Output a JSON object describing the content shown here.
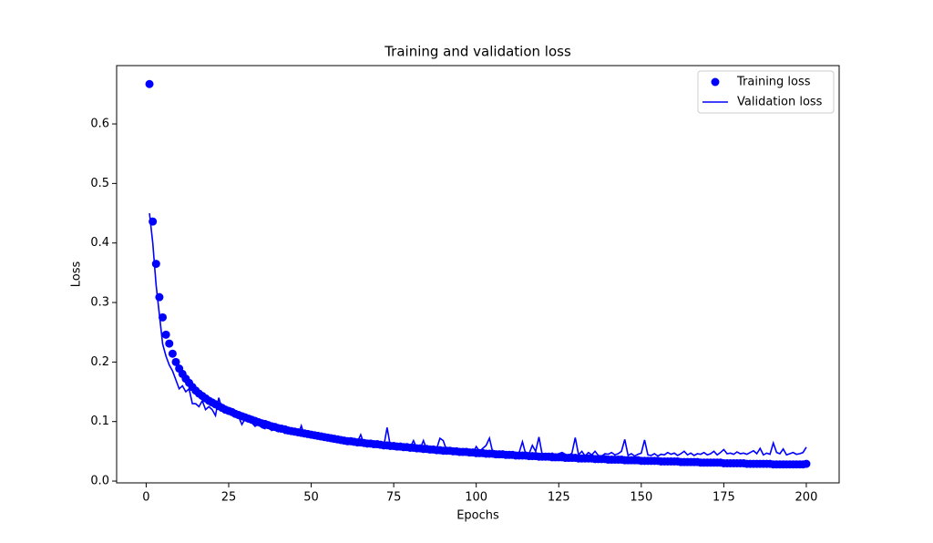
{
  "chart_data": {
    "type": "line",
    "title": "Training and validation loss",
    "xlabel": "Epochs",
    "ylabel": "Loss",
    "x": [
      1,
      2,
      3,
      4,
      5,
      6,
      7,
      8,
      9,
      10,
      11,
      12,
      13,
      14,
      15,
      16,
      17,
      18,
      19,
      20,
      21,
      22,
      23,
      24,
      25,
      26,
      27,
      28,
      29,
      30,
      31,
      32,
      33,
      34,
      35,
      36,
      37,
      38,
      39,
      40,
      41,
      42,
      43,
      44,
      45,
      46,
      47,
      48,
      49,
      50,
      51,
      52,
      53,
      54,
      55,
      56,
      57,
      58,
      59,
      60,
      61,
      62,
      63,
      64,
      65,
      66,
      67,
      68,
      69,
      70,
      71,
      72,
      73,
      74,
      75,
      76,
      77,
      78,
      79,
      80,
      81,
      82,
      83,
      84,
      85,
      86,
      87,
      88,
      89,
      90,
      91,
      92,
      93,
      94,
      95,
      96,
      97,
      98,
      99,
      100,
      101,
      102,
      103,
      104,
      105,
      106,
      107,
      108,
      109,
      110,
      111,
      112,
      113,
      114,
      115,
      116,
      117,
      118,
      119,
      120,
      121,
      122,
      123,
      124,
      125,
      126,
      127,
      128,
      129,
      130,
      131,
      132,
      133,
      134,
      135,
      136,
      137,
      138,
      139,
      140,
      141,
      142,
      143,
      144,
      145,
      146,
      147,
      148,
      149,
      150,
      151,
      152,
      153,
      154,
      155,
      156,
      157,
      158,
      159,
      160,
      161,
      162,
      163,
      164,
      165,
      166,
      167,
      168,
      169,
      170,
      171,
      172,
      173,
      174,
      175,
      176,
      177,
      178,
      179,
      180,
      181,
      182,
      183,
      184,
      185,
      186,
      187,
      188,
      189,
      190,
      191,
      192,
      193,
      194,
      195,
      196,
      197,
      198,
      199,
      200
    ],
    "series": [
      {
        "name": "Training loss",
        "color": "#0000ff",
        "mode": "markers",
        "values": [
          0.667,
          0.436,
          0.365,
          0.309,
          0.275,
          0.246,
          0.231,
          0.214,
          0.2,
          0.189,
          0.18,
          0.172,
          0.165,
          0.158,
          0.152,
          0.147,
          0.143,
          0.139,
          0.135,
          0.132,
          0.129,
          0.126,
          0.123,
          0.12,
          0.118,
          0.116,
          0.113,
          0.111,
          0.109,
          0.107,
          0.105,
          0.103,
          0.101,
          0.099,
          0.097,
          0.096,
          0.094,
          0.092,
          0.091,
          0.089,
          0.088,
          0.087,
          0.085,
          0.084,
          0.083,
          0.082,
          0.081,
          0.08,
          0.079,
          0.078,
          0.077,
          0.076,
          0.075,
          0.074,
          0.073,
          0.072,
          0.071,
          0.07,
          0.069,
          0.068,
          0.067,
          0.067,
          0.066,
          0.065,
          0.065,
          0.064,
          0.063,
          0.063,
          0.062,
          0.062,
          0.061,
          0.06,
          0.06,
          0.059,
          0.059,
          0.058,
          0.058,
          0.057,
          0.057,
          0.056,
          0.056,
          0.055,
          0.055,
          0.054,
          0.054,
          0.053,
          0.053,
          0.052,
          0.052,
          0.051,
          0.051,
          0.051,
          0.05,
          0.05,
          0.049,
          0.049,
          0.049,
          0.048,
          0.048,
          0.047,
          0.047,
          0.047,
          0.046,
          0.046,
          0.046,
          0.045,
          0.045,
          0.045,
          0.044,
          0.044,
          0.044,
          0.043,
          0.043,
          0.043,
          0.043,
          0.042,
          0.042,
          0.042,
          0.041,
          0.041,
          0.041,
          0.041,
          0.04,
          0.04,
          0.04,
          0.04,
          0.039,
          0.039,
          0.039,
          0.039,
          0.038,
          0.038,
          0.038,
          0.038,
          0.038,
          0.037,
          0.037,
          0.037,
          0.037,
          0.036,
          0.036,
          0.036,
          0.036,
          0.036,
          0.035,
          0.035,
          0.035,
          0.035,
          0.035,
          0.034,
          0.034,
          0.034,
          0.034,
          0.034,
          0.034,
          0.033,
          0.033,
          0.033,
          0.033,
          0.033,
          0.033,
          0.032,
          0.032,
          0.032,
          0.032,
          0.032,
          0.032,
          0.031,
          0.031,
          0.031,
          0.031,
          0.031,
          0.031,
          0.031,
          0.03,
          0.03,
          0.03,
          0.03,
          0.03,
          0.03,
          0.03,
          0.029,
          0.029,
          0.029,
          0.029,
          0.029,
          0.029,
          0.029,
          0.029,
          0.028,
          0.028,
          0.028,
          0.028,
          0.028,
          0.028,
          0.028,
          0.028,
          0.028,
          0.028,
          0.029
        ]
      },
      {
        "name": "Validation loss",
        "color": "#0000ff",
        "mode": "lines",
        "values": [
          0.45,
          0.4,
          0.33,
          0.28,
          0.23,
          0.21,
          0.195,
          0.185,
          0.17,
          0.155,
          0.16,
          0.15,
          0.155,
          0.13,
          0.13,
          0.125,
          0.135,
          0.12,
          0.125,
          0.12,
          0.11,
          0.14,
          0.12,
          0.125,
          0.115,
          0.118,
          0.11,
          0.108,
          0.095,
          0.105,
          0.1,
          0.098,
          0.092,
          0.096,
          0.09,
          0.088,
          0.095,
          0.085,
          0.087,
          0.083,
          0.085,
          0.08,
          0.082,
          0.079,
          0.081,
          0.077,
          0.093,
          0.076,
          0.078,
          0.075,
          0.074,
          0.08,
          0.072,
          0.071,
          0.073,
          0.069,
          0.07,
          0.068,
          0.067,
          0.069,
          0.066,
          0.065,
          0.064,
          0.066,
          0.078,
          0.062,
          0.063,
          0.061,
          0.064,
          0.06,
          0.06,
          0.059,
          0.09,
          0.058,
          0.057,
          0.06,
          0.056,
          0.058,
          0.055,
          0.057,
          0.068,
          0.055,
          0.054,
          0.068,
          0.053,
          0.055,
          0.052,
          0.054,
          0.072,
          0.068,
          0.052,
          0.05,
          0.051,
          0.049,
          0.052,
          0.05,
          0.048,
          0.05,
          0.047,
          0.058,
          0.05,
          0.055,
          0.06,
          0.072,
          0.048,
          0.047,
          0.046,
          0.05,
          0.045,
          0.047,
          0.046,
          0.044,
          0.048,
          0.066,
          0.045,
          0.046,
          0.06,
          0.05,
          0.074,
          0.044,
          0.046,
          0.043,
          0.047,
          0.044,
          0.046,
          0.048,
          0.045,
          0.043,
          0.047,
          0.073,
          0.044,
          0.05,
          0.042,
          0.048,
          0.044,
          0.05,
          0.043,
          0.042,
          0.046,
          0.045,
          0.048,
          0.044,
          0.046,
          0.05,
          0.07,
          0.043,
          0.046,
          0.042,
          0.045,
          0.047,
          0.069,
          0.044,
          0.043,
          0.046,
          0.042,
          0.045,
          0.044,
          0.048,
          0.045,
          0.047,
          0.043,
          0.046,
          0.05,
          0.044,
          0.047,
          0.043,
          0.046,
          0.045,
          0.048,
          0.044,
          0.046,
          0.05,
          0.044,
          0.048,
          0.053,
          0.046,
          0.047,
          0.045,
          0.049,
          0.046,
          0.047,
          0.045,
          0.048,
          0.051,
          0.046,
          0.055,
          0.044,
          0.047,
          0.045,
          0.064,
          0.048,
          0.046,
          0.054,
          0.044,
          0.046,
          0.048,
          0.045,
          0.046,
          0.048,
          0.057
        ]
      }
    ],
    "xlim": [
      -8.95,
      209.95
    ],
    "xticks": [
      0,
      25,
      50,
      75,
      100,
      125,
      150,
      175,
      200
    ],
    "ylim": [
      -0.003,
      0.698
    ],
    "yticks": [
      {
        "value": 0,
        "label": "0.0"
      },
      0.1,
      0.2,
      0.3,
      0.4,
      0.5,
      0.6
    ],
    "legend": "upper right",
    "grid": false
  }
}
